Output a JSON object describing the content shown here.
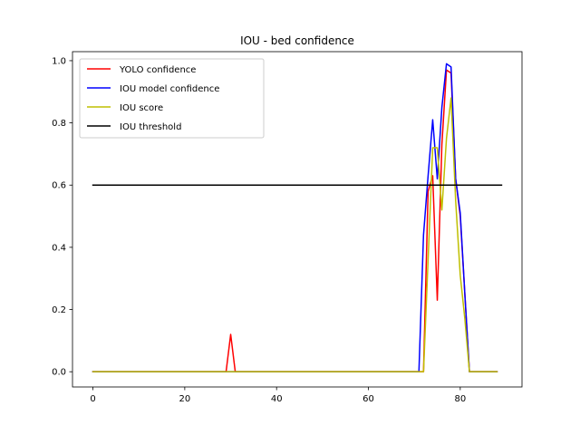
{
  "chart_data": {
    "type": "line",
    "title": "IOU - bed confidence",
    "xlabel": "",
    "ylabel": "",
    "xlim": [
      -4.45,
      93.45
    ],
    "ylim": [
      -0.049,
      1.029
    ],
    "x_ticks": [
      0,
      20,
      40,
      60,
      80
    ],
    "y_ticks": [
      0.0,
      0.2,
      0.4,
      0.6,
      0.8,
      1.0
    ],
    "x_tick_labels": [
      "0",
      "20",
      "40",
      "60",
      "80"
    ],
    "y_tick_labels": [
      "0.0",
      "0.2",
      "0.4",
      "0.6",
      "0.8",
      "1.0"
    ],
    "grid": false,
    "legend_position": "top-left",
    "series": [
      {
        "name": "YOLO confidence",
        "color": "#ff0000",
        "points": [
          [
            0,
            0
          ],
          [
            29,
            0
          ],
          [
            30,
            0.12
          ],
          [
            31,
            0
          ],
          [
            72,
            0
          ],
          [
            73,
            0.58
          ],
          [
            74,
            0.63
          ],
          [
            75,
            0.23
          ],
          [
            76,
            0.73
          ],
          [
            77,
            0.97
          ],
          [
            78,
            0.96
          ],
          [
            79,
            0.62
          ],
          [
            80,
            0.5
          ],
          [
            81,
            0.25
          ],
          [
            82,
            0
          ],
          [
            88,
            0
          ]
        ]
      },
      {
        "name": "IOU model confidence",
        "color": "#0000ff",
        "points": [
          [
            0,
            0
          ],
          [
            71,
            0
          ],
          [
            72,
            0.44
          ],
          [
            73,
            0.63
          ],
          [
            74,
            0.81
          ],
          [
            75,
            0.62
          ],
          [
            76,
            0.85
          ],
          [
            77,
            0.99
          ],
          [
            78,
            0.98
          ],
          [
            79,
            0.62
          ],
          [
            80,
            0.51
          ],
          [
            81,
            0.25
          ],
          [
            82,
            0
          ],
          [
            88,
            0
          ]
        ]
      },
      {
        "name": "IOU score",
        "color": "#bfbf00",
        "points": [
          [
            0,
            0
          ],
          [
            72,
            0
          ],
          [
            73,
            0.36
          ],
          [
            74,
            0.72
          ],
          [
            75,
            0.72
          ],
          [
            76,
            0.52
          ],
          [
            77,
            0.75
          ],
          [
            78,
            0.88
          ],
          [
            79,
            0.55
          ],
          [
            80,
            0.31
          ],
          [
            81,
            0.17
          ],
          [
            82,
            0
          ],
          [
            88,
            0
          ]
        ]
      },
      {
        "name": "IOU threshold",
        "color": "#000000",
        "points": [
          [
            0,
            0.6
          ],
          [
            89,
            0.6
          ]
        ]
      }
    ]
  }
}
